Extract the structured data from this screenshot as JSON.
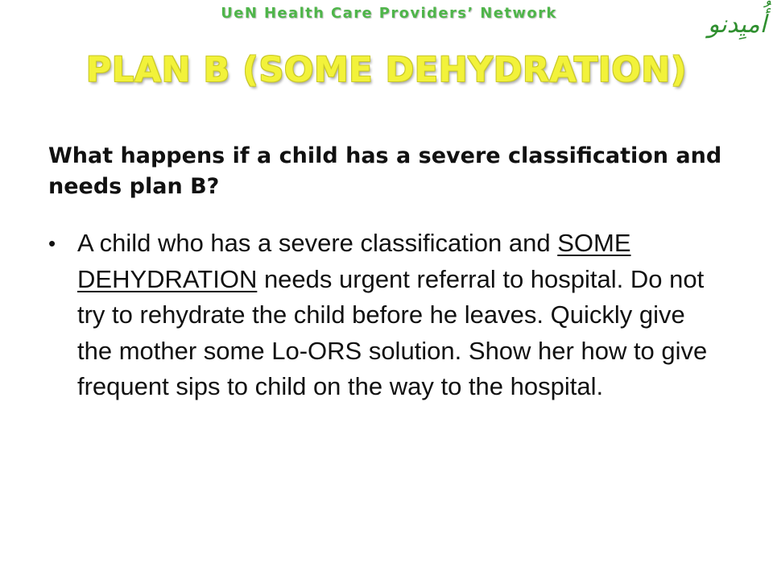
{
  "header": {
    "network_title": "UeN Health Care Providers’ Network",
    "logo_text": "أُميِدنو"
  },
  "slide": {
    "title": "PLAN B (SOME DEHYDRATION)",
    "question": "What happens if a child has a severe classification and needs plan B?",
    "bullet": {
      "marker": "•",
      "text_before": "A child who has a severe classification and ",
      "underlined_text": "SOME DEHYDRATION",
      "text_after": " needs urgent referral to hospital. Do not try to rehydrate the child before he leaves. Quickly give the mother some Lo-ORS solution. Show her how to give frequent sips to child on the way to the hospital."
    }
  },
  "colors": {
    "network_title": "#4fb54a",
    "main_title": "#f2f23a",
    "body_text": "#111111",
    "logo": "#2f8f2f"
  }
}
